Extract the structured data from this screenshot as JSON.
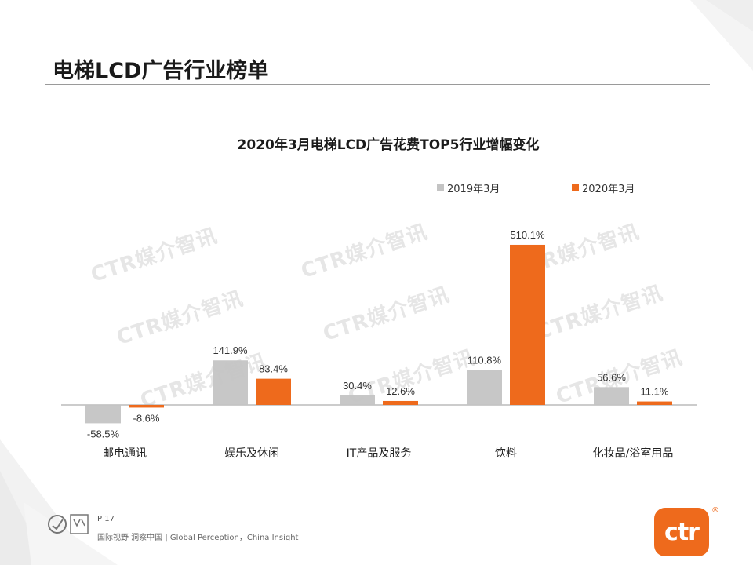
{
  "slide": {
    "title": "电梯LCD广告行业榜单",
    "page_label": "P 17",
    "tagline": "国际视野  洞察中国 | Global Perception，China Insight",
    "watermark_text": "CTR媒介智讯",
    "brand_text": "ctr",
    "brand_reg_mark": "®"
  },
  "colors": {
    "series_2019": "#c4c4c4",
    "series_2020": "#ee6a1c",
    "brand": "#ee6a1c"
  },
  "chart_data": {
    "type": "bar",
    "title": "2020年3月电梯LCD广告花费TOP5行业增幅变化",
    "categories": [
      "邮电通讯",
      "娱乐及休闲",
      "IT产品及服务",
      "饮料",
      "化妆品/浴室用品"
    ],
    "series": [
      {
        "name": "2019年3月",
        "values": [
          -58.5,
          141.9,
          30.4,
          110.8,
          56.6
        ],
        "labels": [
          "-58.5%",
          "141.9%",
          "30.4%",
          "110.8%",
          "56.6%"
        ]
      },
      {
        "name": "2020年3月",
        "values": [
          -8.6,
          83.4,
          12.6,
          510.1,
          11.1
        ],
        "labels": [
          "-8.6%",
          "83.4%",
          "12.6%",
          "510.1%",
          "11.1%"
        ]
      }
    ],
    "unit": "%",
    "legend_position": "top-right",
    "grid": false
  }
}
